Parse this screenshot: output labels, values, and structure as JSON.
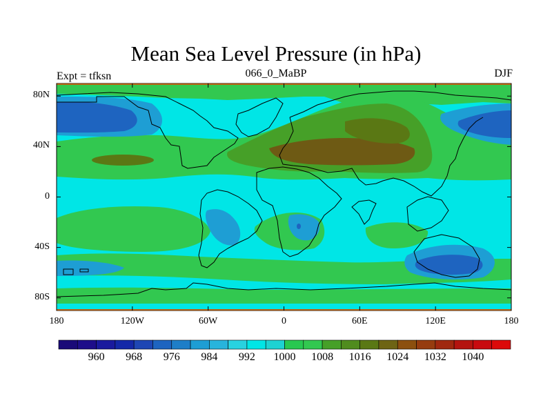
{
  "title": "Mean Sea Level Pressure (in hPa)",
  "left_label": "Expt = tfksn",
  "center_label": "066_0_MaBP",
  "right_label": "DJF",
  "map": {
    "lon_range": [
      -180,
      180
    ],
    "lat_range": [
      -90,
      90
    ],
    "lat_ticks": [
      {
        "value": 80,
        "label": "80N"
      },
      {
        "value": 40,
        "label": "40N"
      },
      {
        "value": 0,
        "label": "0"
      },
      {
        "value": -40,
        "label": "40S"
      },
      {
        "value": -80,
        "label": "80S"
      }
    ],
    "lon_ticks": [
      {
        "value": -180,
        "label": "180"
      },
      {
        "value": -120,
        "label": "120W"
      },
      {
        "value": -60,
        "label": "60W"
      },
      {
        "value": 0,
        "label": "0"
      },
      {
        "value": 60,
        "label": "60E"
      },
      {
        "value": 120,
        "label": "120E"
      },
      {
        "value": 180,
        "label": "180"
      }
    ]
  },
  "colorbar": {
    "colors": [
      "#1a0a78",
      "#1e0e8a",
      "#1a1a9e",
      "#1428a8",
      "#1e46b4",
      "#1e64c0",
      "#1e7ec8",
      "#1e9ed4",
      "#28b4dc",
      "#28d2e0",
      "#00e6e6",
      "#1ed2d2",
      "#28c850",
      "#32c850",
      "#46a028",
      "#508c1e",
      "#5a7814",
      "#6e6414",
      "#8c500f",
      "#963c0f",
      "#a0280f",
      "#b4140f",
      "#c80a0f",
      "#dc0a0a"
    ],
    "labels": [
      "960",
      "968",
      "976",
      "984",
      "992",
      "1000",
      "1008",
      "1016",
      "1024",
      "1032",
      "1040"
    ]
  },
  "palette": {
    "cyan": "#00e6e6",
    "green_light": "#32c850",
    "green_mid": "#46a028",
    "green_dark": "#5a7814",
    "brown": "#6e5a14",
    "blue_light": "#1e9ed4",
    "blue_mid": "#1e64c0",
    "blue_dark": "#1428a8"
  }
}
